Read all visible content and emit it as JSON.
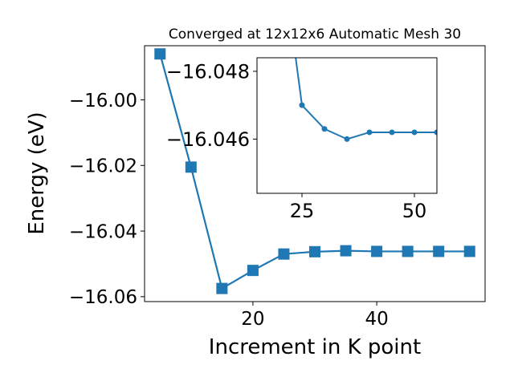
{
  "chart_data": [
    {
      "type": "line",
      "title": "Converged at 12x12x6 Automatic Mesh 30",
      "xlabel": "Increment in K point",
      "ylabel": "Energy (eV)",
      "xlim": [
        2.5,
        57.5
      ],
      "ylim": [
        -16.0615,
        -15.9835
      ],
      "xticks": [
        20,
        40
      ],
      "xtick_labels": [
        "20",
        "40"
      ],
      "yticks": [
        -16.0,
        -16.02,
        -16.04,
        -16.06
      ],
      "ytick_labels": [
        "−16.00",
        "−16.02",
        "−16.04",
        "−16.06"
      ],
      "marker": "square",
      "color": "#1f77b4",
      "grid": false,
      "series": [
        {
          "x": [
            5,
            10,
            15,
            20,
            25,
            30,
            35,
            40,
            45,
            50,
            55
          ],
          "y": [
            -15.986,
            -16.0205,
            -16.0575,
            -16.052,
            -16.047,
            -16.0463,
            -16.046,
            -16.0462,
            -16.0462,
            -16.0462,
            -16.0462
          ]
        }
      ]
    },
    {
      "type": "line",
      "role": "inset",
      "xlim": [
        15,
        55
      ],
      "ylim": [
        -16.0444,
        -16.0484
      ],
      "xticks": [
        25,
        50
      ],
      "xtick_labels": [
        "25",
        "50"
      ],
      "yticks": [
        -16.048,
        -16.046
      ],
      "ytick_labels": [
        "−16.048",
        "−16.046"
      ],
      "marker": "circle",
      "color": "#1f77b4",
      "grid": false,
      "series": [
        {
          "x": [
            20,
            25,
            30,
            35,
            40,
            45,
            50,
            55
          ],
          "y": [
            -16.052,
            -16.047,
            -16.0463,
            -16.046,
            -16.0462,
            -16.0462,
            -16.0462,
            -16.0462
          ]
        }
      ]
    }
  ]
}
